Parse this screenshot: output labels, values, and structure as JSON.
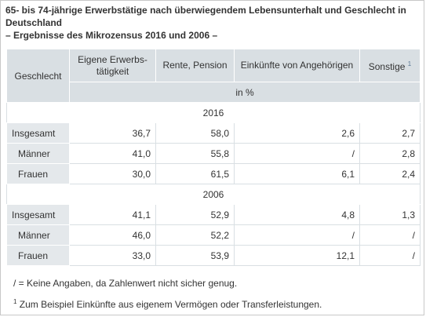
{
  "title": {
    "line1": "65- bis 74-jährige Erwerbstätige nach überwiegendem Lebensunterhalt und Geschlecht in Deutschland",
    "line2": "– Ergebnisse des Mikrozensus 2016 und 2006 –"
  },
  "table": {
    "row_header": "Geschlecht",
    "columns": [
      "Eigene Erwerbs-tätigkeit",
      "Rente, Pension",
      "Einkünfte von Angehörigen",
      "Sonstige"
    ],
    "footnote_mark": "1",
    "unit": "in %",
    "groups": [
      {
        "year": "2016",
        "rows": [
          {
            "label": "Insgesamt",
            "values": [
              "36,7",
              "58,0",
              "2,6",
              "2,7"
            ]
          },
          {
            "label": "Männer",
            "values": [
              "41,0",
              "55,8",
              "/",
              "2,8"
            ]
          },
          {
            "label": "Frauen",
            "values": [
              "30,0",
              "61,5",
              "6,1",
              "2,4"
            ]
          }
        ]
      },
      {
        "year": "2006",
        "rows": [
          {
            "label": "Insgesamt",
            "values": [
              "41,1",
              "52,9",
              "4,8",
              "1,3"
            ]
          },
          {
            "label": "Männer",
            "values": [
              "46,0",
              "52,2",
              "/",
              "/"
            ]
          },
          {
            "label": "Frauen",
            "values": [
              "33,0",
              "53,9",
              "12,1",
              "/"
            ]
          }
        ]
      }
    ]
  },
  "notes": {
    "note1": "/ = Keine Angaben, da Zahlenwert nicht sicher genug.",
    "note2_mark": "1",
    "note2": "Zum Beispiel Einkünfte aus eigenem Vermögen oder Transferleistungen."
  },
  "colors": {
    "header_bg": "#d9dfe3",
    "rowlabel_bg": "#e4e8eb",
    "footnote_link": "#5a7896"
  }
}
